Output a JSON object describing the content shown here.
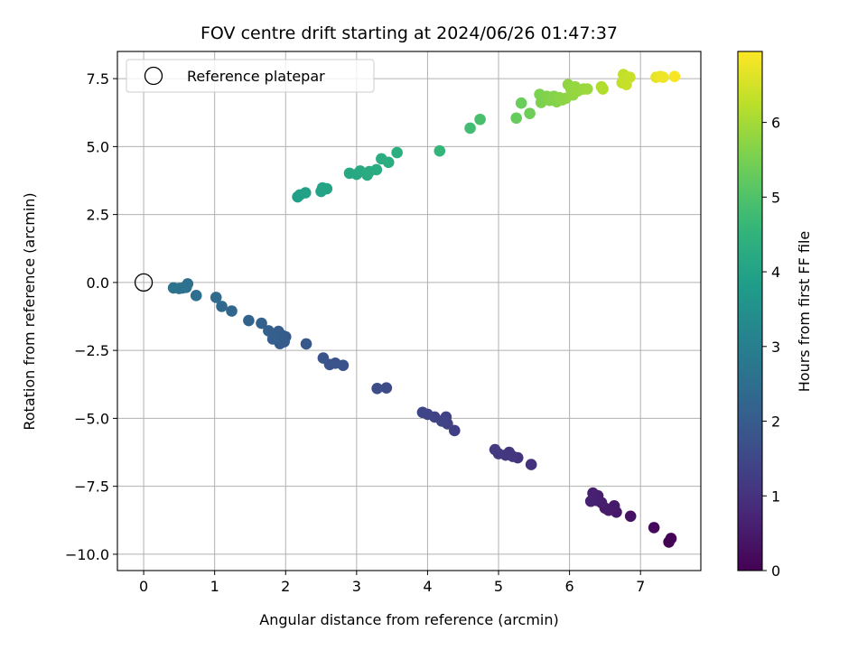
{
  "chart_data": {
    "type": "scatter",
    "title": "FOV centre drift starting at 2024/06/26 01:47:37",
    "xlabel": "Angular distance from reference (arcmin)",
    "ylabel": "Rotation from reference (arcmin)",
    "xlim": [
      -0.37,
      7.85
    ],
    "ylim": [
      -10.6,
      8.5
    ],
    "xticks": [
      0,
      1,
      2,
      3,
      4,
      5,
      6,
      7
    ],
    "xtick_labels": [
      "0",
      "1",
      "2",
      "3",
      "4",
      "5",
      "6",
      "7"
    ],
    "yticks": [
      -10.0,
      -7.5,
      -5.0,
      -2.5,
      0.0,
      2.5,
      5.0,
      7.5
    ],
    "ytick_labels": [
      "−10.0",
      "−7.5",
      "−5.0",
      "−2.5",
      "0.0",
      "2.5",
      "5.0",
      "7.5"
    ],
    "grid": true,
    "legend": {
      "placement": "upper-left",
      "entries": [
        {
          "label": "Reference platepar",
          "marker": "open-circle"
        }
      ]
    },
    "reference_point": {
      "x": 0,
      "y": 0
    },
    "colormap": "viridis",
    "colorbar": {
      "label": "Hours from first FF file",
      "range": [
        0,
        6.95
      ],
      "ticks": [
        0,
        1,
        2,
        3,
        4,
        5,
        6
      ],
      "tick_labels": [
        "0",
        "1",
        "2",
        "3",
        "4",
        "5",
        "6"
      ]
    },
    "series": [
      {
        "points": [
          [
            7.43,
            -9.42,
            0.02
          ],
          [
            7.4,
            -9.55,
            0.05
          ],
          [
            7.19,
            -9.02,
            0.18
          ],
          [
            6.86,
            -8.6,
            0.35
          ],
          [
            6.66,
            -8.45,
            0.45
          ],
          [
            6.63,
            -8.22,
            0.48
          ],
          [
            6.55,
            -8.38,
            0.5
          ],
          [
            6.5,
            -8.3,
            0.52
          ],
          [
            6.45,
            -8.1,
            0.55
          ],
          [
            6.4,
            -7.85,
            0.58
          ],
          [
            6.38,
            -8.02,
            0.6
          ],
          [
            6.33,
            -7.75,
            0.62
          ],
          [
            6.3,
            -8.05,
            0.65
          ],
          [
            5.46,
            -6.7,
            1.0
          ],
          [
            5.27,
            -6.45,
            1.05
          ],
          [
            5.2,
            -6.4,
            1.08
          ],
          [
            5.15,
            -6.25,
            1.1
          ],
          [
            5.1,
            -6.35,
            1.12
          ],
          [
            5.0,
            -6.3,
            1.15
          ],
          [
            4.95,
            -6.15,
            1.18
          ],
          [
            4.38,
            -5.45,
            1.3
          ],
          [
            4.28,
            -5.2,
            1.33
          ],
          [
            4.26,
            -4.95,
            1.35
          ],
          [
            4.2,
            -5.1,
            1.38
          ],
          [
            4.1,
            -4.95,
            1.4
          ],
          [
            4.0,
            -4.85,
            1.43
          ],
          [
            3.93,
            -4.78,
            1.45
          ],
          [
            3.42,
            -3.88,
            1.6
          ],
          [
            3.29,
            -3.9,
            1.63
          ],
          [
            2.81,
            -3.05,
            1.75
          ],
          [
            2.7,
            -2.97,
            1.78
          ],
          [
            2.62,
            -3.02,
            1.8
          ],
          [
            2.53,
            -2.78,
            1.82
          ],
          [
            2.29,
            -2.26,
            1.9
          ],
          [
            2.0,
            -2.0,
            1.95
          ],
          [
            1.98,
            -2.18,
            1.97
          ],
          [
            1.95,
            -1.95,
            2.0
          ],
          [
            1.92,
            -2.25,
            2.02
          ],
          [
            1.9,
            -1.8,
            2.04
          ],
          [
            1.86,
            -2.0,
            2.06
          ],
          [
            1.82,
            -2.08,
            2.08
          ],
          [
            1.76,
            -1.78,
            2.1
          ],
          [
            1.66,
            -1.5,
            2.15
          ],
          [
            1.48,
            -1.4,
            2.2
          ],
          [
            1.24,
            -1.05,
            2.3
          ],
          [
            1.1,
            -0.88,
            2.35
          ],
          [
            1.02,
            -0.55,
            2.4
          ],
          [
            0.74,
            -0.48,
            2.5
          ],
          [
            0.62,
            -0.05,
            2.55
          ],
          [
            0.6,
            -0.18,
            2.58
          ],
          [
            0.55,
            -0.2,
            2.6
          ],
          [
            0.5,
            -0.22,
            2.62
          ],
          [
            0.42,
            -0.2,
            2.65
          ],
          [
            2.17,
            3.15,
            3.9
          ],
          [
            2.2,
            3.22,
            3.92
          ],
          [
            2.28,
            3.3,
            3.95
          ],
          [
            2.5,
            3.35,
            4.0
          ],
          [
            2.52,
            3.48,
            4.02
          ],
          [
            2.58,
            3.45,
            4.04
          ],
          [
            2.9,
            4.02,
            4.15
          ],
          [
            3.0,
            3.98,
            4.18
          ],
          [
            3.05,
            4.1,
            4.2
          ],
          [
            3.15,
            3.95,
            4.22
          ],
          [
            3.18,
            4.08,
            4.24
          ],
          [
            3.28,
            4.15,
            4.26
          ],
          [
            3.35,
            4.55,
            4.3
          ],
          [
            3.45,
            4.42,
            4.33
          ],
          [
            3.57,
            4.78,
            4.36
          ],
          [
            4.17,
            4.84,
            4.6
          ],
          [
            4.6,
            5.68,
            4.8
          ],
          [
            4.74,
            6.0,
            4.9
          ],
          [
            5.25,
            6.05,
            5.3
          ],
          [
            5.32,
            6.6,
            5.35
          ],
          [
            5.44,
            6.22,
            5.4
          ],
          [
            5.58,
            6.92,
            5.55
          ],
          [
            5.6,
            6.62,
            5.57
          ],
          [
            5.68,
            6.85,
            5.6
          ],
          [
            5.72,
            6.7,
            5.62
          ],
          [
            5.78,
            6.85,
            5.65
          ],
          [
            5.82,
            6.65,
            5.67
          ],
          [
            5.86,
            6.8,
            5.7
          ],
          [
            5.9,
            6.72,
            5.72
          ],
          [
            5.95,
            6.78,
            5.74
          ],
          [
            5.98,
            7.28,
            5.76
          ],
          [
            6.02,
            7.12,
            5.78
          ],
          [
            6.05,
            6.9,
            5.8
          ],
          [
            6.08,
            7.2,
            5.82
          ],
          [
            6.12,
            7.05,
            5.84
          ],
          [
            6.2,
            7.12,
            5.86
          ],
          [
            6.25,
            7.12,
            5.88
          ],
          [
            6.45,
            7.2,
            6.1
          ],
          [
            6.47,
            7.12,
            6.12
          ],
          [
            6.74,
            7.35,
            6.3
          ],
          [
            6.76,
            7.65,
            6.32
          ],
          [
            6.78,
            7.42,
            6.34
          ],
          [
            6.8,
            7.28,
            6.36
          ],
          [
            6.85,
            7.55,
            6.38
          ],
          [
            7.22,
            7.55,
            6.7
          ],
          [
            7.28,
            7.58,
            6.75
          ],
          [
            7.32,
            7.55,
            6.78
          ],
          [
            7.48,
            7.58,
            6.9
          ]
        ]
      }
    ]
  }
}
